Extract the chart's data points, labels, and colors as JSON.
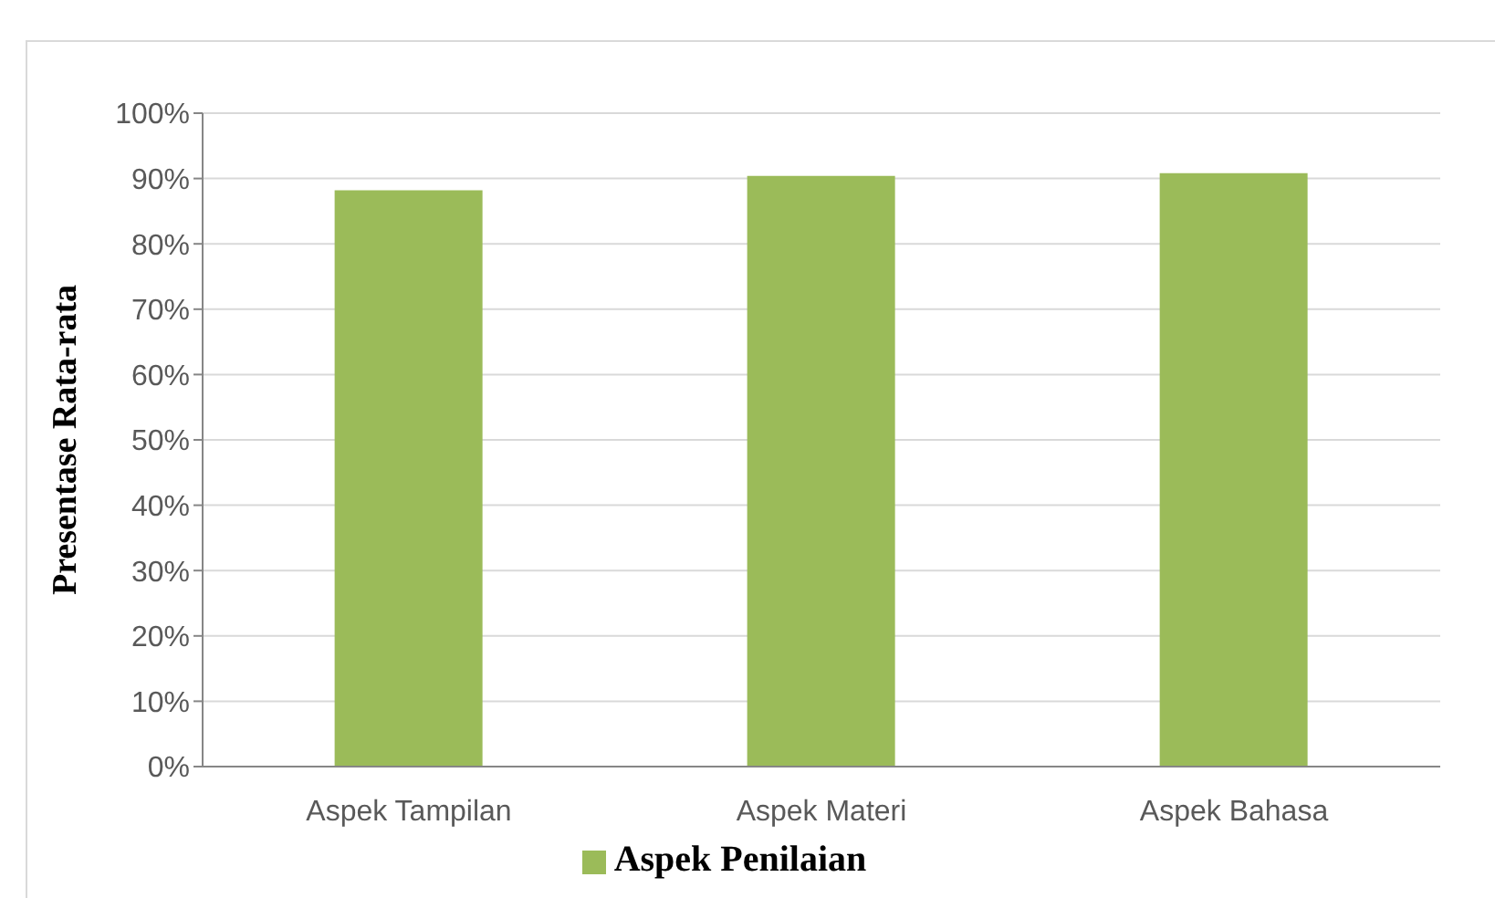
{
  "chart_data": {
    "type": "bar",
    "ylabel": "Presentase Rata-rata",
    "categories": [
      "Aspek Tampilan",
      "Aspek Materi",
      "Aspek Bahasa"
    ],
    "series": [
      {
        "name": "Aspek Penilaian",
        "color": "#9bbb59",
        "values": [
          88.2,
          90.4,
          90.8
        ]
      }
    ],
    "ylim": [
      0,
      100
    ],
    "yticks": [
      {
        "value": 0,
        "label": "0%"
      },
      {
        "value": 10,
        "label": "10%"
      },
      {
        "value": 20,
        "label": "20%"
      },
      {
        "value": 30,
        "label": "30%"
      },
      {
        "value": 40,
        "label": "40%"
      },
      {
        "value": 50,
        "label": "50%"
      },
      {
        "value": 60,
        "label": "60%"
      },
      {
        "value": 70,
        "label": "70%"
      },
      {
        "value": 80,
        "label": "80%"
      },
      {
        "value": 90,
        "label": "90%"
      },
      {
        "value": 100,
        "label": "100%"
      }
    ],
    "grid": "y",
    "legend": "bottom"
  }
}
